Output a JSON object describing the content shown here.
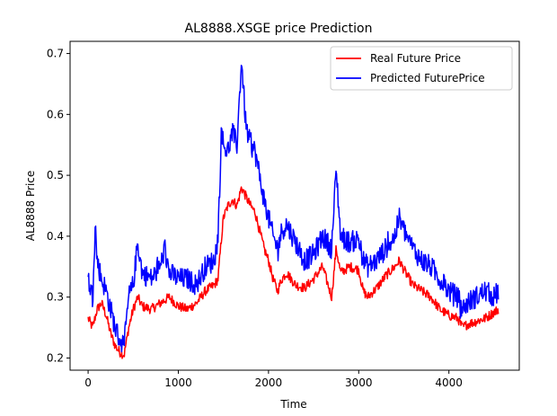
{
  "chart_data": {
    "type": "line",
    "title": "AL8888.XSGE price Prediction",
    "xlabel": "Time",
    "ylabel": "AL8888 Price",
    "xlim": [
      -200,
      4780
    ],
    "ylim": [
      0.18,
      0.72
    ],
    "xticks": [
      0,
      1000,
      2000,
      3000,
      4000
    ],
    "yticks": [
      0.2,
      0.3,
      0.4,
      0.5,
      0.6,
      0.7
    ],
    "grid": false,
    "legend_position": "top-right",
    "series": [
      {
        "name": "Real Future Price",
        "color": "#ff0000",
        "x": [
          0,
          50,
          100,
          150,
          200,
          250,
          300,
          350,
          400,
          450,
          500,
          550,
          600,
          700,
          800,
          900,
          1000,
          1100,
          1200,
          1300,
          1400,
          1440,
          1480,
          1500,
          1550,
          1600,
          1650,
          1700,
          1750,
          1800,
          1850,
          1900,
          1950,
          2000,
          2050,
          2100,
          2150,
          2200,
          2300,
          2400,
          2500,
          2600,
          2700,
          2750,
          2800,
          2900,
          3000,
          3050,
          3100,
          3200,
          3300,
          3400,
          3450,
          3500,
          3600,
          3700,
          3800,
          3900,
          4000,
          4100,
          4150,
          4200,
          4300,
          4400,
          4500,
          4550
        ],
        "y": [
          0.265,
          0.25,
          0.28,
          0.29,
          0.27,
          0.24,
          0.22,
          0.21,
          0.205,
          0.25,
          0.28,
          0.3,
          0.285,
          0.28,
          0.29,
          0.3,
          0.285,
          0.28,
          0.29,
          0.31,
          0.32,
          0.33,
          0.4,
          0.43,
          0.45,
          0.46,
          0.45,
          0.48,
          0.465,
          0.45,
          0.44,
          0.41,
          0.38,
          0.36,
          0.33,
          0.31,
          0.33,
          0.34,
          0.32,
          0.315,
          0.33,
          0.35,
          0.3,
          0.38,
          0.34,
          0.35,
          0.345,
          0.31,
          0.3,
          0.315,
          0.335,
          0.35,
          0.36,
          0.345,
          0.32,
          0.31,
          0.3,
          0.28,
          0.27,
          0.265,
          0.25,
          0.255,
          0.26,
          0.265,
          0.275,
          0.28
        ]
      },
      {
        "name": "Predicted FuturePrice",
        "color": "#0000ff",
        "x": [
          0,
          50,
          80,
          100,
          150,
          200,
          250,
          300,
          350,
          400,
          450,
          500,
          550,
          600,
          700,
          800,
          850,
          900,
          1000,
          1100,
          1200,
          1300,
          1400,
          1440,
          1480,
          1500,
          1550,
          1600,
          1650,
          1700,
          1750,
          1800,
          1850,
          1900,
          1950,
          2000,
          2050,
          2100,
          2150,
          2200,
          2300,
          2400,
          2500,
          2600,
          2700,
          2750,
          2800,
          2900,
          3000,
          3050,
          3100,
          3200,
          3300,
          3400,
          3450,
          3500,
          3600,
          3700,
          3800,
          3900,
          4000,
          4100,
          4150,
          4200,
          4300,
          4400,
          4500,
          4550
        ],
        "y": [
          0.33,
          0.3,
          0.42,
          0.36,
          0.33,
          0.31,
          0.28,
          0.25,
          0.23,
          0.22,
          0.3,
          0.32,
          0.39,
          0.34,
          0.33,
          0.35,
          0.38,
          0.34,
          0.33,
          0.33,
          0.32,
          0.35,
          0.36,
          0.4,
          0.58,
          0.55,
          0.54,
          0.57,
          0.55,
          0.69,
          0.58,
          0.55,
          0.54,
          0.5,
          0.46,
          0.43,
          0.4,
          0.38,
          0.41,
          0.42,
          0.39,
          0.36,
          0.37,
          0.4,
          0.38,
          0.51,
          0.4,
          0.39,
          0.395,
          0.36,
          0.35,
          0.36,
          0.38,
          0.4,
          0.43,
          0.41,
          0.38,
          0.36,
          0.35,
          0.33,
          0.31,
          0.3,
          0.28,
          0.29,
          0.3,
          0.31,
          0.3,
          0.31
        ]
      }
    ]
  }
}
